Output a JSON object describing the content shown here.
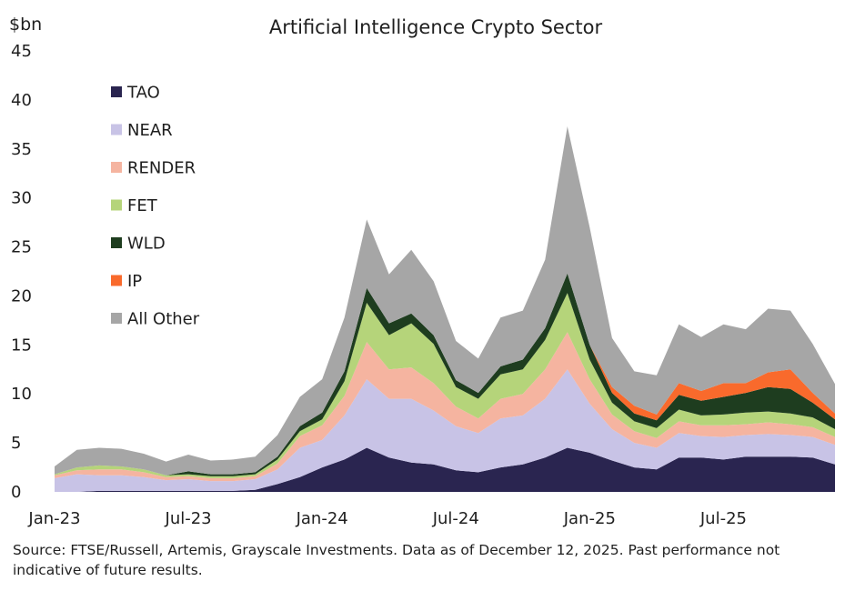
{
  "chart_data": {
    "type": "area",
    "stacked": true,
    "title": "Artificial Intelligence Crypto Sector",
    "ylabel": "$bn",
    "xlabel": "",
    "ylim": [
      0,
      45
    ],
    "yticks": [
      0,
      5,
      10,
      15,
      20,
      25,
      30,
      35,
      40,
      45
    ],
    "xticks": [
      "Jan-23",
      "Jul-23",
      "Jan-24",
      "Jul-24",
      "Jan-25",
      "Jul-25"
    ],
    "legend_position": "top-left",
    "x": [
      "2023-01",
      "2023-02",
      "2023-03",
      "2023-04",
      "2023-05",
      "2023-06",
      "2023-07",
      "2023-08",
      "2023-09",
      "2023-10",
      "2023-11",
      "2023-12",
      "2024-01",
      "2024-02",
      "2024-03",
      "2024-04",
      "2024-05",
      "2024-06",
      "2024-07",
      "2024-08",
      "2024-09",
      "2024-10",
      "2024-11",
      "2024-12",
      "2025-01",
      "2025-02",
      "2025-03",
      "2025-04",
      "2025-05",
      "2025-06",
      "2025-07",
      "2025-08",
      "2025-09",
      "2025-10",
      "2025-11",
      "2025-12"
    ],
    "series": [
      {
        "name": "TAO",
        "color": "#2a2550",
        "values": [
          0,
          0,
          0.1,
          0.1,
          0.1,
          0.1,
          0.1,
          0.1,
          0.1,
          0.2,
          0.8,
          1.5,
          2.5,
          3.3,
          4.5,
          3.5,
          3.0,
          2.8,
          2.2,
          2.0,
          2.5,
          2.8,
          3.5,
          4.5,
          4.0,
          3.2,
          2.5,
          2.3,
          3.5,
          3.5,
          3.3,
          3.6,
          3.6,
          3.6,
          3.5,
          2.8
        ]
      },
      {
        "name": "NEAR",
        "color": "#c8c3e6",
        "values": [
          1.4,
          1.8,
          1.6,
          1.6,
          1.4,
          1.1,
          1.2,
          1.0,
          1.0,
          1.1,
          1.5,
          3.0,
          2.8,
          4.5,
          7.0,
          6.0,
          6.5,
          5.5,
          4.5,
          4.0,
          5.0,
          5.0,
          6.0,
          8.0,
          5.0,
          3.2,
          2.5,
          2.2,
          2.5,
          2.2,
          2.3,
          2.2,
          2.3,
          2.2,
          2.1,
          2.0
        ]
      },
      {
        "name": "RENDER",
        "color": "#f5b4a0",
        "values": [
          0.3,
          0.4,
          0.6,
          0.6,
          0.5,
          0.3,
          0.3,
          0.3,
          0.3,
          0.3,
          0.6,
          1.2,
          1.5,
          2.0,
          3.8,
          3.0,
          3.2,
          2.8,
          2.0,
          1.5,
          2.0,
          2.2,
          3.0,
          3.8,
          2.5,
          1.5,
          1.2,
          1.0,
          1.2,
          1.1,
          1.2,
          1.1,
          1.2,
          1.1,
          1.0,
          0.8
        ]
      },
      {
        "name": "FET",
        "color": "#b5d47a",
        "values": [
          0.1,
          0.3,
          0.4,
          0.3,
          0.3,
          0.2,
          0.2,
          0.2,
          0.2,
          0.2,
          0.4,
          0.5,
          0.6,
          1.5,
          4.0,
          3.5,
          4.5,
          4.0,
          2.0,
          2.0,
          2.5,
          2.5,
          3.0,
          4.0,
          2.0,
          1.2,
          1.0,
          1.0,
          1.2,
          1.0,
          1.1,
          1.2,
          1.1,
          1.1,
          1.0,
          0.8
        ]
      },
      {
        "name": "WLD",
        "color": "#1e3d1f",
        "values": [
          0,
          0,
          0,
          0,
          0,
          0,
          0.3,
          0.2,
          0.2,
          0.2,
          0.3,
          0.5,
          0.7,
          1.0,
          1.5,
          1.2,
          1.0,
          0.9,
          0.7,
          0.6,
          0.8,
          1.0,
          1.2,
          2.0,
          1.5,
          1.0,
          0.8,
          0.8,
          1.5,
          1.5,
          1.8,
          2.0,
          2.5,
          2.5,
          1.5,
          1.0
        ]
      },
      {
        "name": "IP",
        "color": "#f96a2c",
        "values": [
          0,
          0,
          0,
          0,
          0,
          0,
          0,
          0,
          0,
          0,
          0,
          0,
          0,
          0,
          0,
          0,
          0,
          0,
          0,
          0,
          0,
          0,
          0,
          0,
          0,
          0.6,
          0.8,
          0.6,
          1.2,
          1.0,
          1.4,
          1.0,
          1.5,
          2.0,
          1.0,
          0.6
        ]
      },
      {
        "name": "All Other",
        "color": "#a6a6a6",
        "values": [
          0.8,
          1.8,
          1.8,
          1.8,
          1.6,
          1.4,
          1.7,
          1.4,
          1.5,
          1.6,
          2.2,
          3.0,
          3.4,
          5.5,
          7.0,
          5.0,
          6.5,
          5.5,
          4.0,
          3.5,
          5.0,
          5.0,
          7.0,
          15.0,
          12.0,
          5.0,
          3.5,
          4.0,
          6.0,
          5.5,
          6.0,
          5.5,
          6.5,
          6.0,
          5.0,
          3.0
        ]
      }
    ]
  },
  "source_note": "Source: FTSE/Russell, Artemis, Grayscale Investments. Data as of December 12, 2025. Past performance not indicative of future results."
}
